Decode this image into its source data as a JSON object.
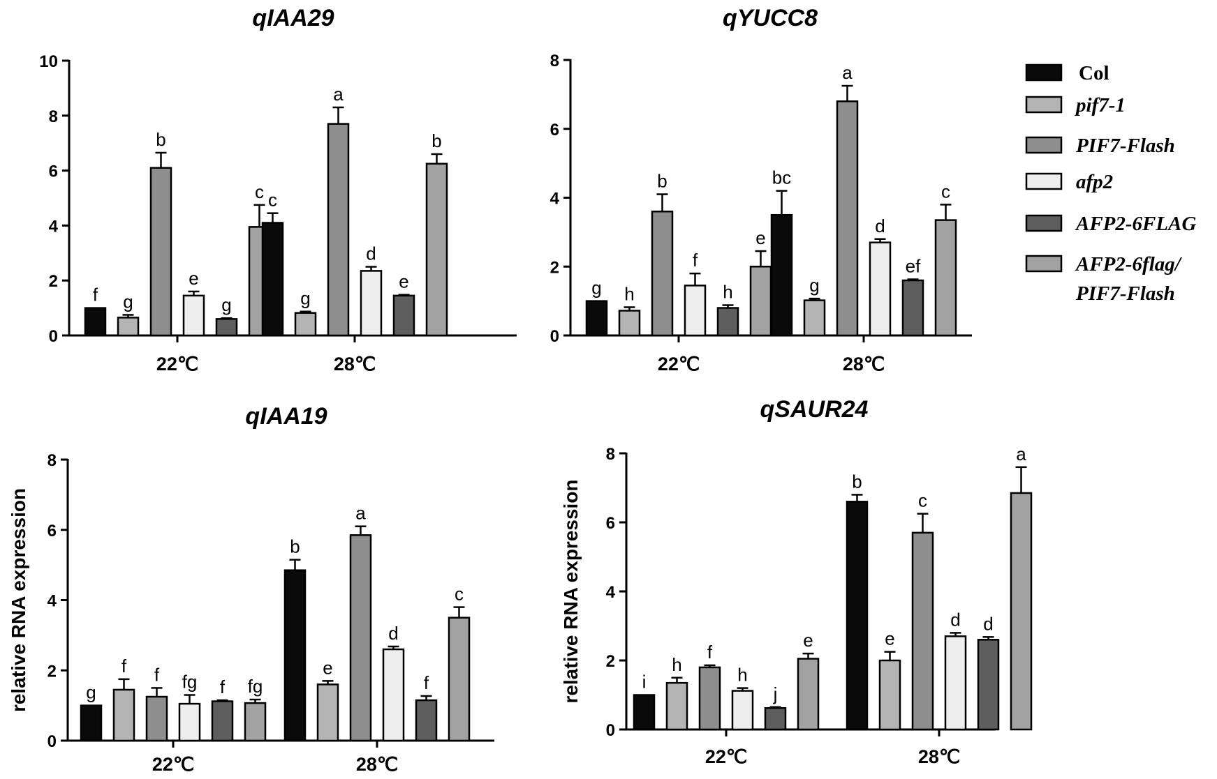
{
  "legend": {
    "entries": [
      {
        "label": "Col",
        "color": "#0a0a0a",
        "italic": false
      },
      {
        "label": "pif7-1",
        "color": "#b4b4b4",
        "italic": true
      },
      {
        "label": "PIF7-Flash",
        "color": "#8e8e8e",
        "italic": true
      },
      {
        "label": "afp2",
        "color": "#eeeeee",
        "italic": true
      },
      {
        "label": "AFP2-6FLAG",
        "color": "#5e5e5e",
        "italic": true
      },
      {
        "label": "AFP2-6flag/",
        "label2": "PIF7-Flash",
        "color": "#a2a2a2",
        "italic": true
      }
    ]
  },
  "chart_data": [
    {
      "type": "bar",
      "title": "qIAA29",
      "xlabel": "",
      "ylabel": "",
      "ylim": [
        0,
        10
      ],
      "yticks": [
        "0",
        "2",
        "4",
        "6",
        "8",
        "10"
      ],
      "categories": [
        "22℃",
        "28℃"
      ],
      "series": [
        {
          "name": "Col",
          "values": [
            1.0,
            4.1
          ],
          "errors": [
            0.0,
            0.35
          ],
          "letters": [
            "f",
            "c"
          ]
        },
        {
          "name": "pif7-1",
          "values": [
            0.65,
            0.82
          ],
          "errors": [
            0.1,
            0.05
          ],
          "letters": [
            "g",
            "g"
          ]
        },
        {
          "name": "PIF7-Flash",
          "values": [
            6.1,
            7.7
          ],
          "errors": [
            0.55,
            0.6
          ],
          "letters": [
            "b",
            "a"
          ]
        },
        {
          "name": "afp2",
          "values": [
            1.45,
            2.35
          ],
          "errors": [
            0.15,
            0.15
          ],
          "letters": [
            "e",
            "d"
          ]
        },
        {
          "name": "AFP2-6FLAG",
          "values": [
            0.6,
            1.45
          ],
          "errors": [
            0.03,
            0.03
          ],
          "letters": [
            "g",
            "e"
          ]
        },
        {
          "name": "AFP2-6flag/PIF7-Flash",
          "values": [
            3.95,
            6.25
          ],
          "errors": [
            0.8,
            0.35
          ],
          "letters": [
            "c",
            "b"
          ]
        }
      ]
    },
    {
      "type": "bar",
      "title": "qYUCC8",
      "xlabel": "",
      "ylabel": "",
      "ylim": [
        0,
        8
      ],
      "yticks": [
        "0",
        "2",
        "4",
        "6",
        "8"
      ],
      "categories": [
        "22℃",
        "28℃"
      ],
      "series": [
        {
          "name": "Col",
          "values": [
            1.0,
            3.5
          ],
          "errors": [
            0.0,
            0.7
          ],
          "letters": [
            "g",
            "bc"
          ]
        },
        {
          "name": "pif7-1",
          "values": [
            0.72,
            1.02
          ],
          "errors": [
            0.1,
            0.05
          ],
          "letters": [
            "h",
            "g"
          ]
        },
        {
          "name": "PIF7-Flash",
          "values": [
            3.6,
            6.8
          ],
          "errors": [
            0.5,
            0.45
          ],
          "letters": [
            "b",
            "a"
          ]
        },
        {
          "name": "afp2",
          "values": [
            1.45,
            2.7
          ],
          "errors": [
            0.35,
            0.1
          ],
          "letters": [
            "f",
            "d"
          ]
        },
        {
          "name": "AFP2-6FLAG",
          "values": [
            0.8,
            1.6
          ],
          "errors": [
            0.08,
            0.03
          ],
          "letters": [
            "h",
            "ef"
          ]
        },
        {
          "name": "AFP2-6flag/PIF7-Flash",
          "values": [
            2.0,
            3.35
          ],
          "errors": [
            0.45,
            0.45
          ],
          "letters": [
            "e",
            "c"
          ]
        }
      ]
    },
    {
      "type": "bar",
      "title": "qIAA19",
      "xlabel": "",
      "ylabel": "relative RNA expression",
      "ylim": [
        0,
        8
      ],
      "yticks": [
        "0",
        "2",
        "4",
        "6",
        "8"
      ],
      "categories": [
        "22℃",
        "28℃"
      ],
      "series": [
        {
          "name": "Col",
          "values": [
            1.0,
            4.85
          ],
          "errors": [
            0.0,
            0.3
          ],
          "letters": [
            "g",
            "b"
          ]
        },
        {
          "name": "pif7-1",
          "values": [
            1.45,
            1.6
          ],
          "errors": [
            0.3,
            0.1
          ],
          "letters": [
            "f",
            "e"
          ]
        },
        {
          "name": "PIF7-Flash",
          "values": [
            1.25,
            5.85
          ],
          "errors": [
            0.25,
            0.25
          ],
          "letters": [
            "f",
            "a"
          ]
        },
        {
          "name": "afp2",
          "values": [
            1.05,
            2.6
          ],
          "errors": [
            0.25,
            0.08
          ],
          "letters": [
            "fg",
            "d"
          ]
        },
        {
          "name": "AFP2-6FLAG",
          "values": [
            1.12,
            1.15
          ],
          "errors": [
            0.03,
            0.12
          ],
          "letters": [
            "f",
            "f"
          ]
        },
        {
          "name": "AFP2-6flag/PIF7-Flash",
          "values": [
            1.07,
            3.5
          ],
          "errors": [
            0.1,
            0.3
          ],
          "letters": [
            "fg",
            "c"
          ]
        }
      ]
    },
    {
      "type": "bar",
      "title": "qSAUR24",
      "xlabel": "",
      "ylabel": "relative RNA expression",
      "ylim": [
        0,
        8
      ],
      "yticks": [
        "0",
        "2",
        "4",
        "6",
        "8"
      ],
      "categories": [
        "22℃",
        "28℃"
      ],
      "series": [
        {
          "name": "Col",
          "values": [
            1.0,
            6.6
          ],
          "errors": [
            0.0,
            0.2
          ],
          "letters": [
            "i",
            "b"
          ]
        },
        {
          "name": "pif7-1",
          "values": [
            1.35,
            2.0
          ],
          "errors": [
            0.15,
            0.25
          ],
          "letters": [
            "h",
            "e"
          ]
        },
        {
          "name": "PIF7-Flash",
          "values": [
            1.8,
            5.7
          ],
          "errors": [
            0.06,
            0.55
          ],
          "letters": [
            "f",
            "c"
          ]
        },
        {
          "name": "afp2",
          "values": [
            1.12,
            2.7
          ],
          "errors": [
            0.08,
            0.1
          ],
          "letters": [
            "h",
            "d"
          ]
        },
        {
          "name": "AFP2-6FLAG",
          "values": [
            0.62,
            2.6
          ],
          "errors": [
            0.03,
            0.08
          ],
          "letters": [
            "j",
            "d"
          ]
        },
        {
          "name": "AFP2-6flag/PIF7-Flash",
          "values": [
            2.05,
            6.85
          ],
          "errors": [
            0.15,
            0.75
          ],
          "letters": [
            "e",
            "a"
          ]
        }
      ]
    }
  ]
}
